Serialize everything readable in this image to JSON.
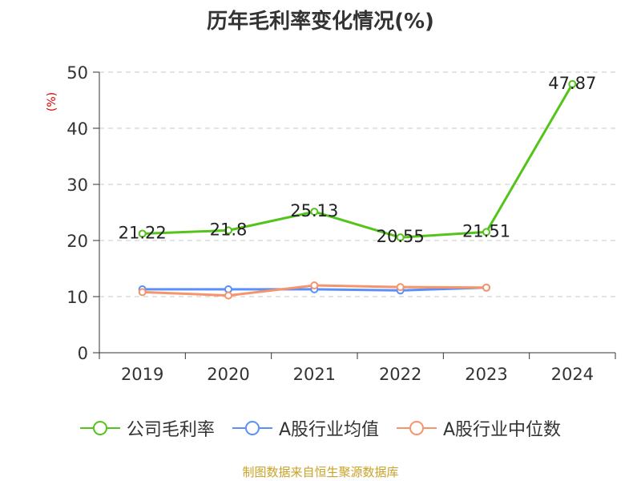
{
  "chart_data": {
    "type": "line",
    "title": "历年毛利率变化情况(%)",
    "ylabel": "(%)",
    "categories": [
      "2019",
      "2020",
      "2021",
      "2022",
      "2023",
      "2024"
    ],
    "ylim": [
      0,
      50
    ],
    "yticks": [
      "0",
      "10",
      "20",
      "30",
      "40",
      "50"
    ],
    "grid": true,
    "legend_position": "bottom",
    "series": [
      {
        "name": "公司毛利率",
        "color": "#52c41a",
        "values": [
          21.22,
          21.8,
          25.13,
          20.55,
          21.51,
          47.87
        ],
        "labels": [
          "21.22",
          "21.8",
          "25.13",
          "20.55",
          "21.51",
          "47.87"
        ]
      },
      {
        "name": "A股行业均值",
        "color": "#5b8ff9",
        "values": [
          11.3,
          11.3,
          11.3,
          11.1,
          11.6,
          null
        ]
      },
      {
        "name": "A股行业中位数",
        "color": "#f6946b",
        "values": [
          10.8,
          10.2,
          12.0,
          11.7,
          11.6,
          null
        ]
      }
    ]
  },
  "source": "制图数据来自恒生聚源数据库"
}
